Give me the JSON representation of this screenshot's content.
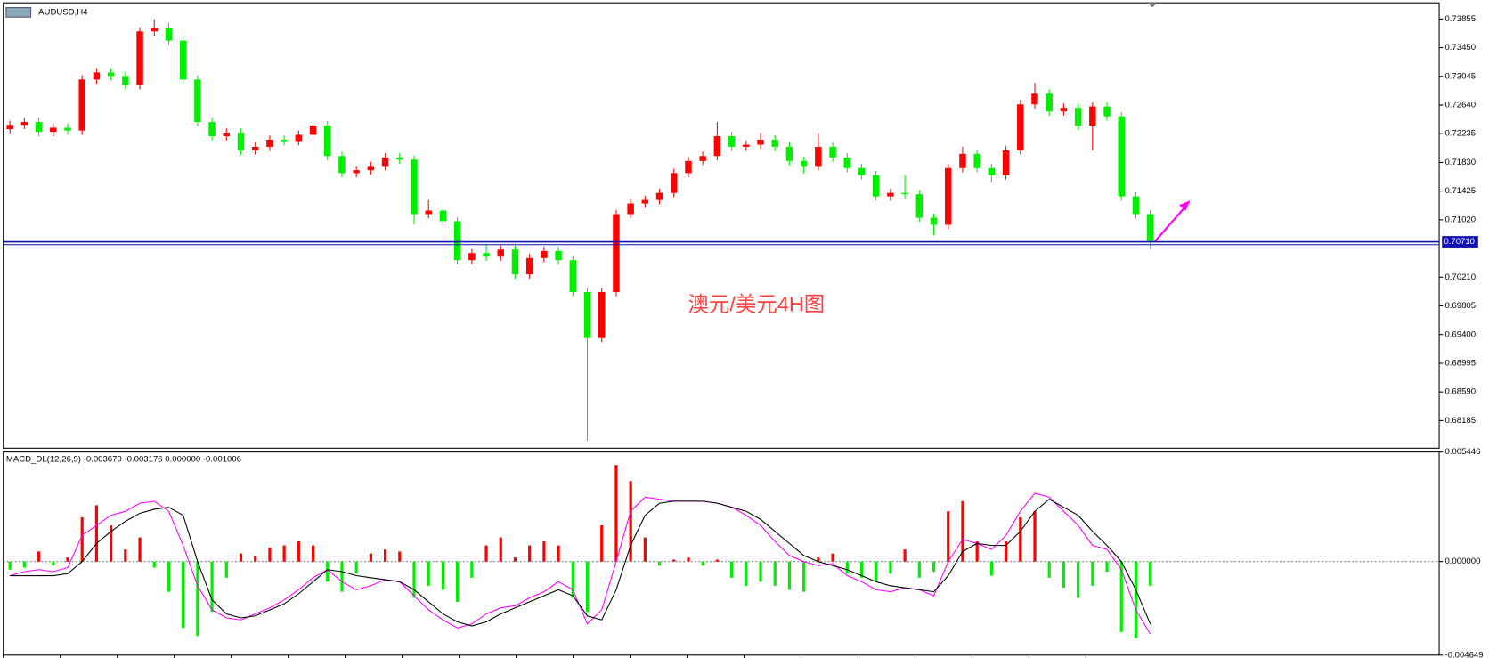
{
  "chart_data": [
    {
      "type": "candlestick",
      "title": "AUDUSD,H4",
      "annotation": "澳元/美元4H图",
      "up_color": "#ff0000",
      "down_color": "#00ee00",
      "line_color": "#1010b0",
      "ylim": [
        0.67796,
        0.74083
      ],
      "yticks": [
        0.73855,
        {
          "value": 0.7345,
          "label": "0.73450"
        },
        0.73045,
        {
          "value": 0.7264,
          "label": "0.72640"
        },
        0.72235,
        {
          "value": 0.7183,
          "label": "0.71830"
        },
        0.71425,
        {
          "value": 0.7102,
          "label": "0.71020"
        },
        {
          "value": 0.7021,
          "label": "0.70210"
        },
        0.69805,
        {
          "value": 0.694,
          "label": "0.69400"
        },
        0.68995,
        {
          "value": 0.6859,
          "label": "0.68590"
        },
        0.68185
      ],
      "current_price": {
        "value": 0.7071,
        "label": "0.70710"
      },
      "open": [
        0.723,
        0.7236,
        0.724,
        0.7226,
        0.7232,
        0.7228,
        0.73,
        0.731,
        0.7305,
        0.7292,
        0.7368,
        0.7372,
        0.7355,
        0.73,
        0.724,
        0.722,
        0.7225,
        0.72,
        0.7205,
        0.7215,
        0.7213,
        0.7222,
        0.7235,
        0.7192,
        0.7168,
        0.7172,
        0.7178,
        0.719,
        0.7187,
        0.711,
        0.7115,
        0.71,
        0.7045,
        0.7055,
        0.705,
        0.706,
        0.7025,
        0.7048,
        0.7058,
        0.7045,
        0.7,
        0.6935,
        0.7,
        0.711,
        0.7125,
        0.713,
        0.714,
        0.7168,
        0.7185,
        0.7192,
        0.722,
        0.7205,
        0.7208,
        0.7215,
        0.7205,
        0.7185,
        0.7178,
        0.7205,
        0.719,
        0.7175,
        0.7165,
        0.7135,
        0.714,
        0.7138,
        0.7105,
        0.7095,
        0.7175,
        0.7195,
        0.7175,
        0.7165,
        0.72,
        0.7265,
        0.728,
        0.7255,
        0.726,
        0.7235,
        0.7262,
        0.7248,
        0.7135,
        0.711
      ],
      "high": [
        0.7242,
        0.7246,
        0.7246,
        0.7238,
        0.7238,
        0.7306,
        0.7316,
        0.7316,
        0.7311,
        0.7374,
        0.7385,
        0.738,
        0.7361,
        0.7306,
        0.7246,
        0.7231,
        0.7231,
        0.7211,
        0.7221,
        0.7221,
        0.7228,
        0.7241,
        0.7241,
        0.7198,
        0.7178,
        0.7184,
        0.7196,
        0.7196,
        0.7193,
        0.713,
        0.7121,
        0.7106,
        0.7061,
        0.7068,
        0.7066,
        0.7066,
        0.7054,
        0.7064,
        0.7064,
        0.7051,
        0.7006,
        0.7006,
        0.7116,
        0.7131,
        0.7136,
        0.7146,
        0.7174,
        0.7191,
        0.7198,
        0.724,
        0.7226,
        0.7214,
        0.7225,
        0.7221,
        0.7211,
        0.7191,
        0.7225,
        0.7211,
        0.7196,
        0.7181,
        0.7171,
        0.7146,
        0.7165,
        0.7144,
        0.7111,
        0.7181,
        0.7205,
        0.7201,
        0.7181,
        0.7206,
        0.7271,
        0.7295,
        0.7286,
        0.7266,
        0.7266,
        0.7268,
        0.7268,
        0.7254,
        0.7141,
        0.7116
      ],
      "low": [
        0.7224,
        0.723,
        0.722,
        0.722,
        0.7222,
        0.7222,
        0.7294,
        0.7299,
        0.7286,
        0.7286,
        0.7362,
        0.7349,
        0.7294,
        0.7234,
        0.7214,
        0.7214,
        0.7194,
        0.7194,
        0.7199,
        0.7207,
        0.7207,
        0.7216,
        0.7186,
        0.7162,
        0.7162,
        0.7166,
        0.7172,
        0.7181,
        0.7095,
        0.7104,
        0.7094,
        0.7039,
        0.7039,
        0.7044,
        0.7044,
        0.7019,
        0.7019,
        0.7042,
        0.7039,
        0.6994,
        0.679,
        0.6929,
        0.6994,
        0.7104,
        0.7119,
        0.7124,
        0.7134,
        0.7162,
        0.7179,
        0.7186,
        0.7199,
        0.7199,
        0.7202,
        0.7199,
        0.7179,
        0.7168,
        0.7172,
        0.7184,
        0.7169,
        0.7159,
        0.7129,
        0.7129,
        0.7132,
        0.7099,
        0.708,
        0.7089,
        0.7169,
        0.7169,
        0.7155,
        0.7159,
        0.7194,
        0.7259,
        0.7249,
        0.7249,
        0.7229,
        0.72,
        0.7242,
        0.7129,
        0.7104,
        0.706
      ],
      "close": [
        0.7236,
        0.724,
        0.7226,
        0.7232,
        0.7228,
        0.73,
        0.731,
        0.7305,
        0.7292,
        0.7368,
        0.7372,
        0.7355,
        0.73,
        0.724,
        0.722,
        0.7225,
        0.72,
        0.7205,
        0.7215,
        0.7213,
        0.7222,
        0.7235,
        0.7192,
        0.7168,
        0.7172,
        0.7178,
        0.719,
        0.7187,
        0.711,
        0.7115,
        0.71,
        0.7045,
        0.7055,
        0.705,
        0.706,
        0.7025,
        0.7048,
        0.7058,
        0.7045,
        0.7,
        0.6935,
        0.7,
        0.711,
        0.7125,
        0.713,
        0.714,
        0.7168,
        0.7185,
        0.7192,
        0.722,
        0.7205,
        0.7208,
        0.7215,
        0.7205,
        0.7185,
        0.7178,
        0.7205,
        0.719,
        0.7175,
        0.7165,
        0.7135,
        0.714,
        0.7138,
        0.7105,
        0.7095,
        0.7175,
        0.7195,
        0.7175,
        0.7165,
        0.72,
        0.7265,
        0.728,
        0.7255,
        0.726,
        0.7235,
        0.7262,
        0.7248,
        0.7135,
        0.711,
        0.7072
      ]
    },
    {
      "type": "macd",
      "title": "MACD_DL(12,26,9) -0.003679 -0.003176 0.000000 -0.001006",
      "up_color": "#ff0000",
      "down_color": "#00ee00",
      "ylim": [
        -0.004649,
        0.005446
      ],
      "yticks": [
        0.005446,
        {
          "value": 0,
          "label": "0.000000"
        },
        -0.004649
      ],
      "values": [
        -0.0004,
        -0.0003,
        0.0005,
        -0.0002,
        0.0002,
        0.0022,
        0.0028,
        0.0018,
        0.0006,
        0.0012,
        -0.0003,
        -0.0015,
        -0.0033,
        -0.0037,
        -0.0025,
        -0.0008,
        0.0004,
        0.0003,
        0.0007,
        0.0008,
        0.001,
        0.0008,
        -0.001,
        -0.0015,
        -0.0006,
        0.0004,
        0.0006,
        0.0005,
        -0.0018,
        -0.0012,
        -0.0014,
        -0.002,
        -0.0008,
        0.0008,
        0.0012,
        0.0002,
        0.0008,
        0.001,
        0.0008,
        -0.0018,
        -0.0025,
        0.0018,
        0.0048,
        0.004,
        0.0012,
        -0.0002,
        0.0001,
        0.0002,
        -0.0002,
        0.0001,
        -0.0008,
        -0.0012,
        -0.001,
        -0.0012,
        -0.0014,
        -0.0015,
        0.0002,
        0.0004,
        -0.0006,
        -0.0008,
        -0.001,
        -0.0006,
        0.0006,
        -0.0008,
        -0.0005,
        0.0025,
        0.003,
        0.001,
        -0.0007,
        0.001,
        0.0022,
        0.0025,
        -0.0008,
        -0.0013,
        -0.0018,
        -0.0012,
        -0.0005,
        -0.0035,
        -0.0038,
        -0.0012
      ],
      "series": [
        {
          "color": "#ff00ff",
          "values": [
            -0.0007,
            -0.0005,
            -0.0004,
            -0.0005,
            -0.0003,
            0.0013,
            0.0018,
            0.0023,
            0.0025,
            0.0029,
            0.003,
            0.0025,
            0.0008,
            -0.0012,
            -0.0024,
            -0.0028,
            -0.0029,
            -0.0026,
            -0.0023,
            -0.0019,
            -0.0014,
            -0.0008,
            -0.0004,
            -0.001,
            -0.0014,
            -0.0012,
            -0.0009,
            -0.001,
            -0.0017,
            -0.0024,
            -0.0029,
            -0.0033,
            -0.0031,
            -0.0026,
            -0.0023,
            -0.0022,
            -0.0018,
            -0.0015,
            -0.001,
            -0.0014,
            -0.0031,
            -0.0024,
            0.0,
            0.0025,
            0.0032,
            0.0031,
            0.003,
            0.003,
            0.003,
            0.0029,
            0.0027,
            0.0023,
            0.0018,
            0.001,
            0.0003,
            0.0,
            -0.0002,
            -0.0001,
            -0.0007,
            -0.001,
            -0.0014,
            -0.0015,
            -0.0013,
            -0.0014,
            -0.0017,
            0.0,
            0.0011,
            0.0009,
            0.0006,
            0.0013,
            0.0025,
            0.0034,
            0.0032,
            0.0025,
            0.0018,
            0.0008,
            0.0006,
            -0.0004,
            -0.0024,
            -0.0036
          ]
        },
        {
          "color": "#000000",
          "values": [
            -0.0007,
            -0.0007,
            -0.0007,
            -0.0007,
            -0.0006,
            0.0,
            0.0009,
            0.0015,
            0.002,
            0.0024,
            0.0026,
            0.0027,
            0.0023,
            0.0,
            -0.0019,
            -0.0026,
            -0.0028,
            -0.0027,
            -0.0024,
            -0.0021,
            -0.0016,
            -0.001,
            -0.0004,
            -0.0005,
            -0.0007,
            -0.0008,
            -0.0009,
            -0.001,
            -0.0014,
            -0.002,
            -0.0026,
            -0.003,
            -0.0032,
            -0.003,
            -0.0026,
            -0.0023,
            -0.002,
            -0.0017,
            -0.0014,
            -0.0017,
            -0.0027,
            -0.0029,
            -0.0014,
            0.0008,
            0.0023,
            0.0029,
            0.003,
            0.003,
            0.003,
            0.0029,
            0.0027,
            0.0025,
            0.0021,
            0.0015,
            0.0009,
            0.0003,
            0.0,
            -0.0002,
            -0.0004,
            -0.0007,
            -0.001,
            -0.0012,
            -0.0013,
            -0.0014,
            -0.0015,
            -0.0007,
            0.0005,
            0.0009,
            0.0008,
            0.0008,
            0.0015,
            0.0025,
            0.0031,
            0.0027,
            0.0023,
            0.0015,
            0.0008,
            0.0,
            -0.0014,
            -0.0031
          ]
        }
      ]
    }
  ]
}
